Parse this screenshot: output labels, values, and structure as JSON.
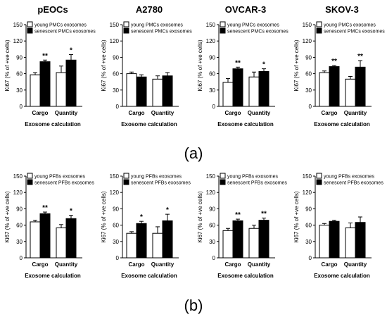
{
  "figure": {
    "panel_labels": [
      "(a)",
      "(b)"
    ]
  },
  "chart_data": [
    {
      "type": "bar",
      "panel": "a",
      "title": "pEOCs",
      "categories": [
        "Cargo",
        "Quantity"
      ],
      "xlabel": "Exosome calculation",
      "ylabel": "Ki67 (% of +ve cells)",
      "ylim": [
        0,
        150
      ],
      "yticks": [
        0,
        30,
        60,
        90,
        120,
        150
      ],
      "series": [
        {
          "name": "young PMCs exosomes",
          "values": [
            58,
            62
          ],
          "errors": [
            4,
            12
          ],
          "color": "#ffffff"
        },
        {
          "name": "senescent PMCs exosomes",
          "values": [
            82,
            85
          ],
          "errors": [
            3,
            10
          ],
          "color": "#000000"
        }
      ],
      "significance": [
        "**",
        "*"
      ]
    },
    {
      "type": "bar",
      "panel": "a",
      "title": "A2780",
      "categories": [
        "Cargo",
        "Quantity"
      ],
      "xlabel": "Exosome calculation",
      "ylabel": "Ki67 (% of +ve cells)",
      "ylim": [
        0,
        150
      ],
      "yticks": [
        0,
        30,
        60,
        90,
        120,
        150
      ],
      "series": [
        {
          "name": "young PMCs exosomes",
          "values": [
            60,
            50
          ],
          "errors": [
            3,
            6
          ],
          "color": "#ffffff"
        },
        {
          "name": "senescent PMCs exosomes",
          "values": [
            54,
            56
          ],
          "errors": [
            4,
            6
          ],
          "color": "#000000"
        }
      ],
      "significance": [
        "",
        ""
      ]
    },
    {
      "type": "bar",
      "panel": "a",
      "title": "OVCAR-3",
      "categories": [
        "Cargo",
        "Quantity"
      ],
      "xlabel": "Exosome calculation",
      "ylabel": "Ki67 (% of +ve cells)",
      "ylim": [
        0,
        150
      ],
      "yticks": [
        0,
        30,
        60,
        90,
        120,
        150
      ],
      "series": [
        {
          "name": "young PMCs exosomes",
          "values": [
            44,
            54
          ],
          "errors": [
            7,
            9
          ],
          "color": "#ffffff"
        },
        {
          "name": "senescent PMCs exosomes",
          "values": [
            69,
            64
          ],
          "errors": [
            3,
            5
          ],
          "color": "#000000"
        }
      ],
      "significance": [
        "**",
        "*"
      ]
    },
    {
      "type": "bar",
      "panel": "a",
      "title": "SKOV-3",
      "categories": [
        "Cargo",
        "Quantity"
      ],
      "xlabel": "Exosome calculation",
      "ylabel": "Ki67 (% of +ve cells)",
      "ylim": [
        0,
        150
      ],
      "yticks": [
        0,
        30,
        60,
        90,
        120,
        150
      ],
      "series": [
        {
          "name": "young PMCs exosomes",
          "values": [
            62,
            50
          ],
          "errors": [
            3,
            5
          ],
          "color": "#ffffff"
        },
        {
          "name": "senescent PMCs exosomes",
          "values": [
            73,
            72
          ],
          "errors": [
            2,
            12
          ],
          "color": "#000000"
        }
      ],
      "significance": [
        "**",
        "**"
      ]
    },
    {
      "type": "bar",
      "panel": "b",
      "title": "",
      "categories": [
        "Cargo",
        "Quantity"
      ],
      "xlabel": "Exosome calculation",
      "ylabel": "Ki67 (% of +ve cells)",
      "ylim": [
        0,
        150
      ],
      "yticks": [
        0,
        30,
        60,
        90,
        120,
        150
      ],
      "series": [
        {
          "name": "young PFBs exosomes",
          "values": [
            66,
            55
          ],
          "errors": [
            3,
            6
          ],
          "color": "#ffffff"
        },
        {
          "name": "senescent PFBs exosomes",
          "values": [
            81,
            72
          ],
          "errors": [
            3,
            6
          ],
          "color": "#000000"
        }
      ],
      "significance": [
        "**",
        "*"
      ]
    },
    {
      "type": "bar",
      "panel": "b",
      "title": "",
      "categories": [
        "Cargo",
        "Quantity"
      ],
      "xlabel": "Exosome calculation",
      "ylabel": "Ki67 (% of +ve cells)",
      "ylim": [
        0,
        150
      ],
      "yticks": [
        0,
        30,
        60,
        90,
        120,
        150
      ],
      "series": [
        {
          "name": "young PFBs exosomes",
          "values": [
            45,
            45
          ],
          "errors": [
            3,
            12
          ],
          "color": "#ffffff"
        },
        {
          "name": "senescent PFBs exosomes",
          "values": [
            63,
            68
          ],
          "errors": [
            4,
            12
          ],
          "color": "#000000"
        }
      ],
      "significance": [
        "*",
        "*"
      ]
    },
    {
      "type": "bar",
      "panel": "b",
      "title": "",
      "categories": [
        "Cargo",
        "Quantity"
      ],
      "xlabel": "Exosome calculation",
      "ylabel": "Ki67 (% of +ve cells)",
      "ylim": [
        0,
        150
      ],
      "yticks": [
        0,
        30,
        60,
        90,
        120,
        150
      ],
      "series": [
        {
          "name": "young PFBs exosomes",
          "values": [
            50,
            54
          ],
          "errors": [
            4,
            6
          ],
          "color": "#ffffff"
        },
        {
          "name": "senescent PFBs exosomes",
          "values": [
            68,
            69
          ],
          "errors": [
            3,
            4
          ],
          "color": "#000000"
        }
      ],
      "significance": [
        "**",
        "**"
      ]
    },
    {
      "type": "bar",
      "panel": "b",
      "title": "",
      "categories": [
        "Cargo",
        "Quantity"
      ],
      "xlabel": "Exosome calculation",
      "ylabel": "Ki67 (% of +ve cells)",
      "ylim": [
        0,
        150
      ],
      "yticks": [
        0,
        30,
        60,
        90,
        120,
        150
      ],
      "series": [
        {
          "name": "young PFBs exosomes",
          "values": [
            60,
            55
          ],
          "errors": [
            3,
            9
          ],
          "color": "#ffffff"
        },
        {
          "name": "senescent PFBs exosomes",
          "values": [
            67,
            65
          ],
          "errors": [
            2,
            10
          ],
          "color": "#000000"
        }
      ],
      "significance": [
        "",
        ""
      ]
    }
  ]
}
